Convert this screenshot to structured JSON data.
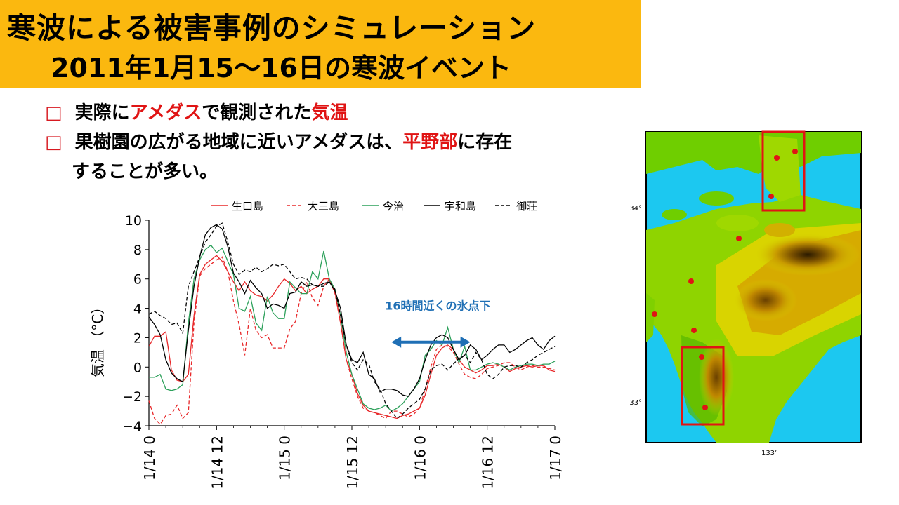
{
  "title": {
    "line1": "寒波による被害事例のシミュレーション",
    "line2": "2011年1月15～16日の寒波イベント"
  },
  "bullets": [
    {
      "marker": "□",
      "parts": [
        {
          "text": "実際に",
          "red": false
        },
        {
          "text": "アメダス",
          "red": true
        },
        {
          "text": "で観測された",
          "red": false
        },
        {
          "text": "気温",
          "red": true
        }
      ]
    },
    {
      "marker": "□",
      "parts": [
        {
          "text": "果樹園の広がる地域に近いアメダスは、",
          "red": false
        },
        {
          "text": "平野部",
          "red": true
        },
        {
          "text": "に存在",
          "red": false
        }
      ],
      "continuation": "することが多い。"
    }
  ],
  "colors": {
    "accent": "#fbb80f",
    "bullet_red": "#e01414",
    "arrow": "#1f6fb5"
  },
  "chart_data": {
    "type": "line",
    "ylabel": "気温 （°C）",
    "ylim": [
      -4,
      10
    ],
    "yticks": [
      -4,
      -2,
      0,
      2,
      4,
      6,
      8,
      10
    ],
    "ytick_labels": [
      "−4",
      "−2",
      "0",
      "2",
      "4",
      "6",
      "8",
      "10"
    ],
    "xlim": [
      0,
      72
    ],
    "xticks": [
      0,
      12,
      24,
      36,
      48,
      60,
      72
    ],
    "xtick_labels": [
      "1/14 0",
      "1/14 12",
      "1/15 0",
      "1/15 12",
      "1/16 0",
      "1/16 12",
      "1/17 0"
    ],
    "annotation": {
      "text": "16時間近くの氷点下",
      "from_x": 43,
      "to_x": 57,
      "y": 1.7
    },
    "series": [
      {
        "name": "生口島",
        "color": "#e8282a",
        "dash": "solid",
        "x": [
          0,
          1,
          2,
          3,
          4,
          5,
          6,
          7,
          8,
          9,
          10,
          11,
          12,
          13,
          14,
          15,
          16,
          17,
          18,
          19,
          20,
          21,
          22,
          23,
          24,
          25,
          26,
          27,
          28,
          29,
          30,
          31,
          32,
          33,
          34,
          35,
          36,
          37,
          38,
          39,
          40,
          41,
          42,
          43,
          44,
          45,
          46,
          47,
          48,
          49,
          50,
          51,
          52,
          53,
          54,
          55,
          56,
          57,
          58,
          59,
          60,
          61,
          62,
          63,
          64,
          65,
          66,
          67,
          68,
          69,
          70,
          71,
          72
        ],
        "y": [
          1.4,
          2.1,
          2.1,
          2.4,
          -0.2,
          -0.9,
          -1.0,
          -0.5,
          3.5,
          6.3,
          7.0,
          7.3,
          7.6,
          7.2,
          6.5,
          5.8,
          5.2,
          5.8,
          5.2,
          4.9,
          4.8,
          4.5,
          4.9,
          5.5,
          6.0,
          5.7,
          5.2,
          5.5,
          5.0,
          5.3,
          5.5,
          6.0,
          6.0,
          5.1,
          3.0,
          0.5,
          -0.5,
          -1.8,
          -2.6,
          -3.0,
          -3.1,
          -3.2,
          -3.3,
          -3.4,
          -3.5,
          -3.3,
          -3.2,
          -3.0,
          -2.8,
          -1.9,
          -0.5,
          0.8,
          1.3,
          1.5,
          1.2,
          0.5,
          0.0,
          -0.2,
          -0.4,
          -0.2,
          0.1,
          0.1,
          0.2,
          0.0,
          -0.3,
          -0.1,
          0.0,
          0.1,
          0.0,
          0.1,
          0.1,
          -0.2,
          -0.3
        ]
      },
      {
        "name": "大三島",
        "color": "#e8282a",
        "dash": "dash",
        "x": [
          0,
          1,
          2,
          3,
          4,
          5,
          6,
          7,
          8,
          9,
          10,
          11,
          12,
          13,
          14,
          15,
          16,
          17,
          18,
          19,
          20,
          21,
          22,
          23,
          24,
          25,
          26,
          27,
          28,
          29,
          30,
          31,
          32,
          33,
          34,
          35,
          36,
          37,
          38,
          39,
          40,
          41,
          42,
          43,
          44,
          45,
          46,
          47,
          48,
          49,
          50,
          51,
          52,
          53,
          54,
          55,
          56,
          57,
          58,
          59,
          60,
          61,
          62,
          63,
          64,
          65,
          66,
          67,
          68,
          69,
          70,
          71,
          72
        ],
        "y": [
          -2.3,
          -3.5,
          -3.9,
          -3.3,
          -3.2,
          -2.6,
          -3.5,
          -3.1,
          3.0,
          6.2,
          6.7,
          7.0,
          7.3,
          7.5,
          6.5,
          4.5,
          2.9,
          0.8,
          4.0,
          2.5,
          2.0,
          2.2,
          1.3,
          1.3,
          1.3,
          2.6,
          3.1,
          5.0,
          5.8,
          4.7,
          4.2,
          5.5,
          6.0,
          5.0,
          3.0,
          0.5,
          -0.8,
          -2.0,
          -2.8,
          -3.0,
          -3.1,
          -3.3,
          -3.5,
          -3.0,
          -3.0,
          -3.2,
          -3.4,
          -3.2,
          -2.8,
          -1.5,
          0.0,
          1.2,
          1.5,
          1.4,
          1.0,
          0.2,
          -0.5,
          -0.7,
          -0.8,
          -0.5,
          -0.1,
          0.0,
          0.1,
          0.3,
          0.3,
          0.0,
          -0.2,
          0.0,
          0.1,
          0.0,
          0.0,
          -0.1,
          -0.2
        ]
      },
      {
        "name": "今治",
        "color": "#2ca05a",
        "dash": "solid",
        "x": [
          0,
          1,
          2,
          3,
          4,
          5,
          6,
          7,
          8,
          9,
          10,
          11,
          12,
          13,
          14,
          15,
          16,
          17,
          18,
          19,
          20,
          21,
          22,
          23,
          24,
          25,
          26,
          27,
          28,
          29,
          30,
          31,
          32,
          33,
          34,
          35,
          36,
          37,
          38,
          39,
          40,
          41,
          42,
          43,
          44,
          45,
          46,
          47,
          48,
          49,
          50,
          51,
          52,
          53,
          54,
          55,
          56,
          57,
          58,
          59,
          60,
          61,
          62,
          63,
          64,
          65,
          66,
          67,
          68,
          69,
          70,
          71,
          72
        ],
        "y": [
          -0.7,
          -0.7,
          -0.5,
          -1.5,
          -1.6,
          -1.5,
          -1.2,
          3.0,
          6.0,
          7.3,
          8.0,
          8.3,
          7.8,
          8.1,
          7.2,
          6.3,
          4.0,
          3.8,
          4.8,
          3.0,
          2.5,
          4.8,
          3.7,
          3.3,
          3.3,
          5.8,
          5.4,
          5.0,
          5.0,
          6.5,
          6.0,
          7.9,
          6.0,
          5.3,
          3.5,
          1.0,
          -0.5,
          -1.5,
          -2.5,
          -2.8,
          -2.9,
          -2.8,
          -2.6,
          -3.0,
          -2.8,
          -2.5,
          -2.0,
          -1.5,
          -1.0,
          0.8,
          1.2,
          1.8,
          1.5,
          2.7,
          1.2,
          0.3,
          1.4,
          -0.2,
          -0.2,
          0.0,
          0.2,
          0.3,
          0.2,
          0.0,
          -0.2,
          0.0,
          0.1,
          0.2,
          0.2,
          0.1,
          0.2,
          0.2,
          0.4
        ]
      },
      {
        "name": "宇和島",
        "color": "#000000",
        "dash": "solid",
        "x": [
          0,
          1,
          2,
          3,
          4,
          5,
          6,
          7,
          8,
          9,
          10,
          11,
          12,
          13,
          14,
          15,
          16,
          17,
          18,
          19,
          20,
          21,
          22,
          23,
          24,
          25,
          26,
          27,
          28,
          29,
          30,
          31,
          32,
          33,
          34,
          35,
          36,
          37,
          38,
          39,
          40,
          41,
          42,
          43,
          44,
          45,
          46,
          47,
          48,
          49,
          50,
          51,
          52,
          53,
          54,
          55,
          56,
          57,
          58,
          59,
          60,
          61,
          62,
          63,
          64,
          65,
          66,
          67,
          68,
          69,
          70,
          71,
          72
        ],
        "y": [
          3.4,
          2.9,
          2.2,
          0.5,
          -0.4,
          -0.8,
          -1.0,
          2.5,
          5.5,
          7.5,
          9.0,
          9.5,
          9.7,
          9.4,
          8.2,
          6.4,
          5.8,
          5.0,
          5.9,
          5.4,
          5.0,
          4.0,
          4.3,
          4.2,
          4.0,
          5.0,
          5.1,
          5.8,
          5.5,
          5.6,
          5.5,
          5.7,
          5.8,
          5.2,
          4.0,
          1.5,
          0.5,
          0.3,
          1.0,
          -0.5,
          -0.8,
          -1.7,
          -1.5,
          -1.5,
          -1.6,
          -1.9,
          -2.0,
          -1.5,
          -0.8,
          0.5,
          1.5,
          2.0,
          2.2,
          2.0,
          1.2,
          0.5,
          0.8,
          1.5,
          1.2,
          0.5,
          0.8,
          1.2,
          1.5,
          1.5,
          1.0,
          1.2,
          1.5,
          1.8,
          2.0,
          1.5,
          1.2,
          1.8,
          2.1
        ]
      },
      {
        "name": "御荘",
        "color": "#000000",
        "dash": "dash",
        "x": [
          0,
          1,
          2,
          3,
          4,
          5,
          6,
          7,
          8,
          9,
          10,
          11,
          12,
          13,
          14,
          15,
          16,
          17,
          18,
          19,
          20,
          21,
          22,
          23,
          24,
          25,
          26,
          27,
          28,
          29,
          30,
          31,
          32,
          33,
          34,
          35,
          36,
          37,
          38,
          39,
          40,
          41,
          42,
          43,
          44,
          45,
          46,
          47,
          48,
          49,
          50,
          51,
          52,
          53,
          54,
          55,
          56,
          57,
          58,
          59,
          60,
          61,
          62,
          63,
          64,
          65,
          66,
          67,
          68,
          69,
          70,
          71,
          72
        ],
        "y": [
          3.6,
          3.8,
          3.5,
          3.3,
          2.9,
          3.0,
          2.3,
          5.5,
          6.5,
          7.5,
          8.5,
          9.0,
          9.6,
          9.8,
          8.5,
          7.0,
          6.3,
          6.6,
          6.5,
          6.8,
          6.5,
          6.7,
          7.0,
          6.9,
          7.0,
          6.5,
          6.0,
          6.1,
          6.0,
          5.6,
          5.5,
          5.5,
          5.8,
          5.3,
          3.5,
          1.5,
          0.3,
          -0.2,
          0.5,
          0.2,
          -1.0,
          -1.5,
          -2.5,
          -3.0,
          -3.5,
          -3.2,
          -2.8,
          -2.5,
          -2.2,
          -1.5,
          -0.2,
          0.1,
          0.2,
          -0.2,
          0.2,
          0.6,
          0.8,
          0.3,
          1.0,
          0.5,
          -0.5,
          -0.8,
          -0.5,
          0.0,
          0.1,
          0.1,
          0.0,
          0.3,
          0.5,
          0.8,
          1.0,
          1.2,
          1.4
        ]
      }
    ]
  },
  "map": {
    "lat_labels": [
      "34°",
      "33°"
    ],
    "lon_labels": [
      "133°"
    ]
  }
}
